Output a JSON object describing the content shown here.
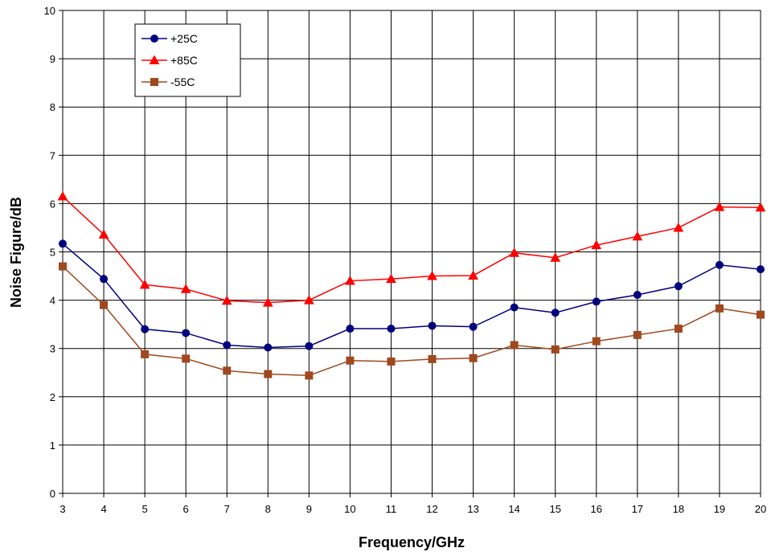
{
  "chart_data": {
    "type": "line",
    "xlabel": "Frequency/GHz",
    "ylabel": "Noise Figure/dB",
    "xlim": [
      3,
      20
    ],
    "ylim": [
      0,
      10
    ],
    "x_ticks": [
      "3",
      "4",
      "5",
      "6",
      "7",
      "8",
      "9",
      "10",
      "11",
      "12",
      "13",
      "14",
      "15",
      "16",
      "17",
      "18",
      "19",
      "20"
    ],
    "y_ticks": [
      "0",
      "1",
      "2",
      "3",
      "4",
      "5",
      "6",
      "7",
      "8",
      "9",
      "10"
    ],
    "grid": true,
    "legend_position": "top-left",
    "x": [
      3,
      4,
      5,
      6,
      7,
      8,
      9,
      10,
      11,
      12,
      13,
      14,
      15,
      16,
      17,
      18,
      19,
      20
    ],
    "series": [
      {
        "name": "+25C",
        "color": "#00007F",
        "marker": "circle",
        "values": [
          5.17,
          4.44,
          3.4,
          3.32,
          3.07,
          3.02,
          3.05,
          3.41,
          3.41,
          3.47,
          3.45,
          3.85,
          3.74,
          3.97,
          4.11,
          4.29,
          4.73,
          4.64
        ]
      },
      {
        "name": "+85C",
        "color": "#FF0000",
        "marker": "triangle",
        "values": [
          6.15,
          5.36,
          4.32,
          4.23,
          3.99,
          3.95,
          4.0,
          4.4,
          4.44,
          4.5,
          4.51,
          4.98,
          4.88,
          5.14,
          5.32,
          5.5,
          5.93,
          5.92
        ]
      },
      {
        "name": "-55C",
        "color": "#A0481E",
        "marker": "square",
        "values": [
          4.7,
          3.9,
          2.88,
          2.79,
          2.54,
          2.47,
          2.44,
          2.75,
          2.73,
          2.78,
          2.8,
          3.07,
          2.98,
          3.15,
          3.28,
          3.41,
          3.83,
          3.7
        ]
      }
    ]
  }
}
